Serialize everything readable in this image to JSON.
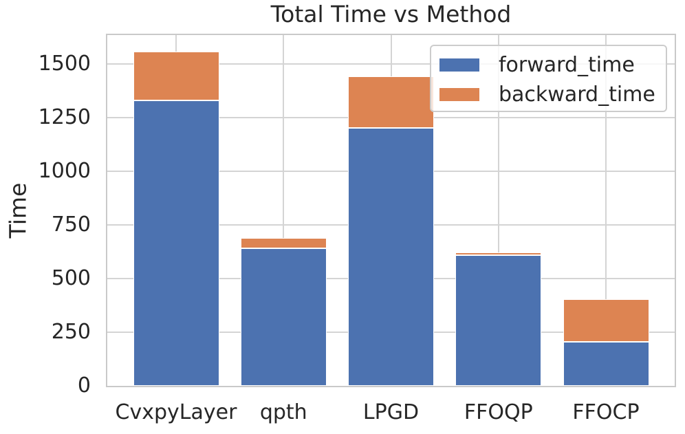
{
  "chart_data": {
    "type": "bar",
    "stacked": true,
    "title": "Total Time vs Method",
    "xlabel": "",
    "ylabel": "Time",
    "categories": [
      "CvxpyLayer",
      "qpth",
      "LPGD",
      "FFOQP",
      "FFOCP"
    ],
    "series": [
      {
        "name": "forward_time",
        "color": "#4C72B0",
        "values": [
          1330,
          640,
          1200,
          610,
          205
        ]
      },
      {
        "name": "backward_time",
        "color": "#DD8452",
        "values": [
          225,
          50,
          240,
          12,
          200
        ]
      }
    ],
    "totals": [
      1555,
      690,
      1440,
      622,
      405
    ],
    "yticks": [
      0,
      250,
      500,
      750,
      1000,
      1250,
      1500
    ],
    "ylim": [
      0,
      1633
    ],
    "xlim": [
      -0.64,
      4.64
    ],
    "bar_width": 0.8,
    "grid": true,
    "grid_color": "#d4d4d4",
    "spine_color": "#c9c9c9",
    "text_color": "#262626",
    "legend_position": "upper right"
  }
}
